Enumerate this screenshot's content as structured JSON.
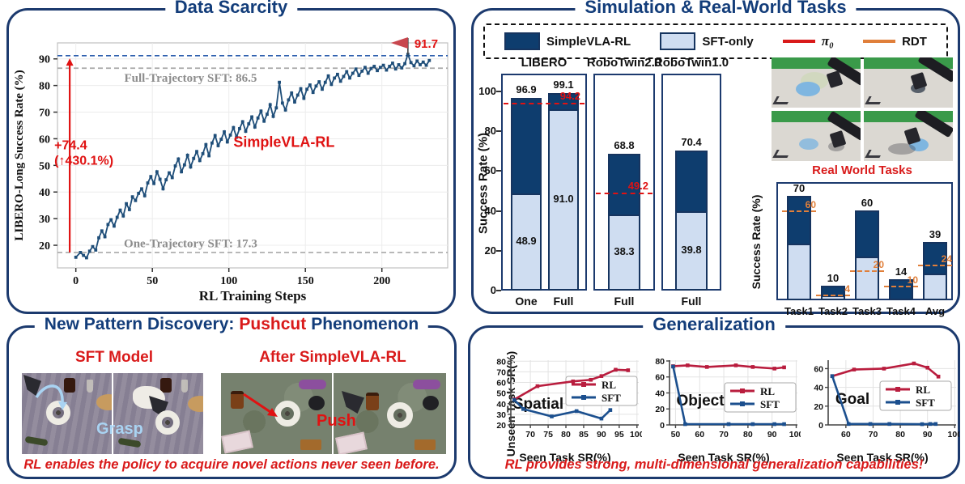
{
  "colors": {
    "navy_border": "#1c3a6e",
    "title_navy": "#133d7a",
    "bar_dark": "#0e3d6e",
    "bar_light": "#cfddf1",
    "red": "#e01212",
    "rl_crimson": "#b91d3e",
    "sft_blue": "#1b4f8e",
    "curve_navy": "#1f4e79",
    "orange": "#e07f3a",
    "gray_dash": "#a8a8a8",
    "gray_text": "#8d8d8d",
    "grasp_blue": "#a9d3f2",
    "flag": "#c8474e"
  },
  "panel_titles": {
    "data_scarcity": "Data Scarcity",
    "sim_real": "Simulation & Real-World Tasks",
    "generalization": "Generalization"
  },
  "sim_real": {
    "legend": [
      {
        "label": "SimpleVLA-RL",
        "swatch": "dark"
      },
      {
        "label": "SFT-only",
        "swatch": "light"
      },
      {
        "label": "π₀",
        "swatch": "red-line"
      },
      {
        "label": "RDT",
        "swatch": "orange-line"
      }
    ],
    "ylabel": "Success Rate (%)",
    "real_world_label": "Real World Tasks"
  },
  "pushcut": {
    "title_prefix": "New Pattern Discovery:",
    "title_highlight": "Pushcut",
    "title_suffix": "Phenomenon",
    "left_label": "SFT Model",
    "right_label": "After SimpleVLA-RL",
    "grasp_text": "Grasp",
    "push_text": "Push",
    "caption": "RL enables the policy to acquire novel actions never seen before."
  },
  "generalization": {
    "ylabel": "Unseen Task SR(%)",
    "xlabel": "Seen Task SR(%)",
    "legend": [
      "RL",
      "SFT"
    ],
    "caption": "RL provides strong, multi-dimensional generalization capabilities!"
  },
  "chart_data": [
    {
      "id": "scarcity",
      "type": "line",
      "title": "Data Scarcity",
      "xlabel": "RL Training Steps",
      "ylabel": "LIBERO-Long Success Rate (%)",
      "xlim": [
        -12,
        243
      ],
      "ylim": [
        11.5,
        96
      ],
      "xticks": [
        0,
        50,
        100,
        150,
        200
      ],
      "yticks": [
        20,
        30,
        40,
        50,
        60,
        70,
        80,
        90
      ],
      "grid": true,
      "legend_position": "none",
      "series": [
        {
          "name": "SimpleVLA-RL",
          "color": "#1f4e79",
          "points": [
            [
              0,
              15.5
            ],
            [
              3,
              17.3
            ],
            [
              5,
              16.2
            ],
            [
              7,
              15.3
            ],
            [
              9,
              17.8
            ],
            [
              11,
              19.5
            ],
            [
              13,
              18.2
            ],
            [
              15,
              22.8
            ],
            [
              17,
              25.4
            ],
            [
              19,
              23.2
            ],
            [
              21,
              27.8
            ],
            [
              23,
              29.6
            ],
            [
              25,
              27.2
            ],
            [
              27,
              30.5
            ],
            [
              29,
              33.2
            ],
            [
              31,
              31.0
            ],
            [
              33,
              35.6
            ],
            [
              35,
              33.4
            ],
            [
              37,
              38.2
            ],
            [
              39,
              36.8
            ],
            [
              41,
              39.5
            ],
            [
              43,
              41.2
            ],
            [
              45,
              38.6
            ],
            [
              47,
              43.4
            ],
            [
              49,
              45.8
            ],
            [
              51,
              43.2
            ],
            [
              53,
              47.6
            ],
            [
              55,
              44.8
            ],
            [
              57,
              41.2
            ],
            [
              59,
              44.6
            ],
            [
              61,
              47.2
            ],
            [
              63,
              45.4
            ],
            [
              65,
              49.8
            ],
            [
              67,
              52.4
            ],
            [
              69,
              47.6
            ],
            [
              71,
              50.2
            ],
            [
              73,
              53.8
            ],
            [
              75,
              49.4
            ],
            [
              77,
              52.6
            ],
            [
              79,
              55.2
            ],
            [
              81,
              51.8
            ],
            [
              83,
              54.4
            ],
            [
              85,
              57.8
            ],
            [
              87,
              53.6
            ],
            [
              89,
              58.4
            ],
            [
              91,
              61.2
            ],
            [
              93,
              57.4
            ],
            [
              95,
              59.8
            ],
            [
              97,
              62.6
            ],
            [
              99,
              58.8
            ],
            [
              101,
              61.4
            ],
            [
              103,
              64.2
            ],
            [
              105,
              60.6
            ],
            [
              107,
              63.8
            ],
            [
              109,
              66.4
            ],
            [
              111,
              62.8
            ],
            [
              113,
              65.6
            ],
            [
              115,
              68.2
            ],
            [
              117,
              64.4
            ],
            [
              119,
              67.8
            ],
            [
              121,
              70.4
            ],
            [
              123,
              66.6
            ],
            [
              125,
              69.2
            ],
            [
              127,
              72.8
            ],
            [
              129,
              68.4
            ],
            [
              131,
              71.6
            ],
            [
              133,
              81.2
            ],
            [
              135,
              73.4
            ],
            [
              137,
              70.8
            ],
            [
              139,
              74.6
            ],
            [
              141,
              77.2
            ],
            [
              143,
              73.8
            ],
            [
              145,
              76.4
            ],
            [
              147,
              78.8
            ],
            [
              149,
              75.2
            ],
            [
              151,
              78.6
            ],
            [
              153,
              80.2
            ],
            [
              155,
              77.4
            ],
            [
              157,
              79.8
            ],
            [
              159,
              81.4
            ],
            [
              161,
              78.6
            ],
            [
              163,
              81.2
            ],
            [
              165,
              83.6
            ],
            [
              167,
              80.4
            ],
            [
              169,
              82.8
            ],
            [
              171,
              84.2
            ],
            [
              173,
              81.6
            ],
            [
              175,
              83.4
            ],
            [
              177,
              85.2
            ],
            [
              179,
              82.8
            ],
            [
              181,
              84.6
            ],
            [
              183,
              86.2
            ],
            [
              185,
              83.8
            ],
            [
              187,
              85.4
            ],
            [
              189,
              86.8
            ],
            [
              191,
              84.6
            ],
            [
              193,
              86.4
            ],
            [
              195,
              87.2
            ],
            [
              197,
              85.6
            ],
            [
              199,
              86.8
            ],
            [
              201,
              87.6
            ],
            [
              203,
              85.8
            ],
            [
              205,
              87.2
            ],
            [
              207,
              88.4
            ],
            [
              209,
              86.2
            ],
            [
              211,
              87.8
            ],
            [
              213,
              86.6
            ],
            [
              215,
              88.2
            ],
            [
              217,
              91.7
            ],
            [
              219,
              88.6
            ],
            [
              221,
              87.4
            ],
            [
              223,
              89.2
            ],
            [
              225,
              87.8
            ],
            [
              227,
              88.8
            ],
            [
              229,
              87.6
            ],
            [
              231,
              89.4
            ]
          ]
        }
      ],
      "ref_lines": [
        {
          "y": 86.5,
          "style": "gray",
          "label": "Full-Trajectory SFT: 86.5",
          "label_x": 75,
          "label_y": 83
        },
        {
          "y": 17.3,
          "style": "gray",
          "label": "One-Trajectory SFT: 17.3",
          "label_x": 75,
          "label_y": 20.7
        },
        {
          "y": 91.2,
          "style": "blue",
          "label": "",
          "label_x": 0,
          "label_y": 0
        }
      ],
      "annotations": {
        "peak_label": "91.7",
        "peak_x": 217,
        "gain_line1": "+74.4",
        "gain_line2": "(↑430.1%)",
        "arrow_x": -4,
        "arrow_y0": 17.3,
        "arrow_y1": 90.2,
        "series_label": "SimpleVLA-RL",
        "series_label_x": 103,
        "series_label_y": 57
      }
    },
    {
      "id": "libero",
      "type": "stacked-bar",
      "title": "LIBERO",
      "categories": [
        "One",
        "Full"
      ],
      "total": [
        96.9,
        99.1
      ],
      "total_labels": [
        "96.9",
        "99.1"
      ],
      "sft": [
        48.9,
        91.0
      ],
      "sft_labels": [
        "48.9",
        "91.0"
      ],
      "pi0": 94.2,
      "pi0_label": "94.2",
      "ylim": [
        0,
        109
      ],
      "yticks": [
        0,
        20,
        40,
        60,
        80,
        100
      ]
    },
    {
      "id": "robotwin2",
      "type": "stacked-bar",
      "title": "RoboTwin2.0",
      "categories": [
        "Full"
      ],
      "total": [
        68.8
      ],
      "total_labels": [
        "68.8"
      ],
      "sft": [
        38.3
      ],
      "sft_labels": [
        "38.3"
      ],
      "pi0": 49.2,
      "pi0_label": "49.2",
      "ylim": [
        0,
        109
      ],
      "yticks": []
    },
    {
      "id": "robotwin1",
      "type": "stacked-bar",
      "title": "RoboTwin1.0",
      "categories": [
        "Full"
      ],
      "total": [
        70.4
      ],
      "total_labels": [
        "70.4"
      ],
      "sft": [
        39.8
      ],
      "sft_labels": [
        "39.8"
      ],
      "pi0": null,
      "pi0_label": "",
      "ylim": [
        0,
        109
      ],
      "yticks": []
    },
    {
      "id": "real_world",
      "type": "stacked-bar",
      "title": "Real World Tasks",
      "ylabel": "Success Rate (%)",
      "categories": [
        "Task1",
        "Task2",
        "Task3",
        "Task4",
        "Avg"
      ],
      "total": [
        70,
        10,
        60,
        14,
        39
      ],
      "total_labels": [
        "70",
        "10",
        "60",
        "14",
        "39"
      ],
      "sft": [
        38,
        3,
        29,
        0,
        18
      ],
      "sft_labels": null,
      "rdt": [
        60,
        4,
        20,
        10,
        24
      ],
      "rdt_labels": [
        "60",
        "4",
        "20",
        "10",
        "24"
      ],
      "ylim": [
        0,
        79
      ]
    },
    {
      "id": "spatial",
      "type": "line",
      "label": "Spatial",
      "xlabel": "Seen Task SR(%)",
      "ylabel": "Unseen Task SR(%)",
      "xlim": [
        64.5,
        100.5
      ],
      "ylim": [
        20,
        81
      ],
      "xticks": [
        70,
        75,
        80,
        85,
        90,
        95,
        100
      ],
      "yticks": [
        20,
        30,
        40,
        50,
        60,
        70,
        80
      ],
      "series": [
        {
          "name": "RL",
          "color": "#b91d3e",
          "points": [
            [
              65.5,
              44
            ],
            [
              72,
              56.5
            ],
            [
              82,
              61
            ],
            [
              87,
              62.5
            ],
            [
              90,
              66
            ],
            [
              94,
              72
            ],
            [
              97.5,
              71.5
            ]
          ]
        },
        {
          "name": "SFT",
          "color": "#1b4f8e",
          "points": [
            [
              65.5,
              43.5
            ],
            [
              68,
              35
            ],
            [
              76,
              28
            ],
            [
              83,
              33
            ],
            [
              90,
              26
            ],
            [
              92.5,
              34
            ]
          ]
        }
      ]
    },
    {
      "id": "object",
      "type": "line",
      "label": "Object",
      "xlabel": "Seen Task SR(%)",
      "ylabel": "Unseen Task SR(%)",
      "xlim": [
        47.5,
        100.5
      ],
      "ylim": [
        0,
        81
      ],
      "xticks": [
        50,
        60,
        70,
        80,
        90,
        100
      ],
      "yticks": [
        0,
        20,
        40,
        60,
        80
      ],
      "series": [
        {
          "name": "RL",
          "color": "#b91d3e",
          "points": [
            [
              49,
              73.5
            ],
            [
              55,
              74.5
            ],
            [
              63,
              72.5
            ],
            [
              75,
              74.5
            ],
            [
              82,
              72.5
            ],
            [
              91,
              70.5
            ],
            [
              95,
              72
            ]
          ]
        },
        {
          "name": "SFT",
          "color": "#1b4f8e",
          "points": [
            [
              49,
              73
            ],
            [
              54,
              1
            ],
            [
              72,
              1
            ],
            [
              82,
              1
            ],
            [
              91,
              1
            ],
            [
              95,
              1
            ]
          ]
        }
      ]
    },
    {
      "id": "goal",
      "type": "line",
      "label": "Goal",
      "xlabel": "Seen Task SR(%)",
      "ylabel": "Unseen Task SR(%)",
      "xlim": [
        53.5,
        100.5
      ],
      "ylim": [
        0,
        69
      ],
      "xticks": [
        60,
        70,
        80,
        90,
        100
      ],
      "yticks": [
        0,
        20,
        40,
        60
      ],
      "series": [
        {
          "name": "RL",
          "color": "#b91d3e",
          "points": [
            [
              55,
              52
            ],
            [
              63,
              59
            ],
            [
              74,
              60
            ],
            [
              85,
              65.5
            ],
            [
              90,
              61
            ],
            [
              94,
              51.5
            ]
          ]
        },
        {
          "name": "SFT",
          "color": "#1b4f8e",
          "points": [
            [
              55,
              52
            ],
            [
              61,
              1
            ],
            [
              69,
              1
            ],
            [
              76,
              1
            ],
            [
              88,
              0.8
            ],
            [
              91,
              1
            ],
            [
              93,
              1
            ]
          ]
        }
      ]
    }
  ]
}
